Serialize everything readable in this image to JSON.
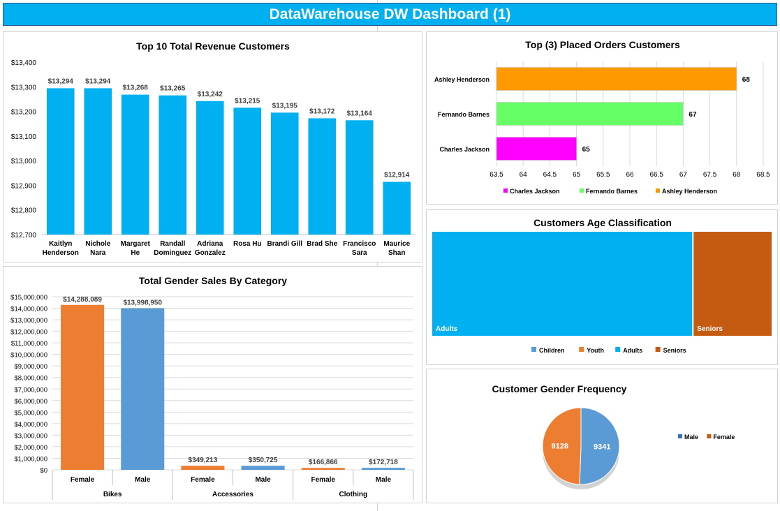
{
  "dashboard": {
    "title": "DataWarehouse DW Dashboard (1)"
  },
  "chart_data": [
    {
      "id": "revenue",
      "type": "bar",
      "title": "Top 10 Total Revenue Customers",
      "categories": [
        [
          "Kaitlyn",
          "Henderson"
        ],
        [
          "Nichole",
          "Nara"
        ],
        [
          "Margaret",
          "He"
        ],
        [
          "Randall",
          "Dominguez"
        ],
        [
          "Adriana",
          "Gonzalez"
        ],
        [
          "Rosa Hu"
        ],
        [
          "Brandi Gill"
        ],
        [
          "Brad She"
        ],
        [
          "Francisco",
          "Sara"
        ],
        [
          "Maurice",
          "Shan"
        ]
      ],
      "values": [
        13294,
        13294,
        13268,
        13265,
        13242,
        13215,
        13195,
        13172,
        13164,
        12914
      ],
      "data_labels": [
        "$13,294",
        "$13,294",
        "$13,268",
        "$13,265",
        "$13,242",
        "$13,215",
        "$13,195",
        "$13,172",
        "$13,164",
        "$12,914"
      ],
      "ylim": [
        12700,
        13400
      ],
      "yticks": [
        12700,
        12800,
        12900,
        13000,
        13100,
        13200,
        13300,
        13400
      ],
      "ytick_labels": [
        "$12,700",
        "$12,800",
        "$12,900",
        "$13,000",
        "$13,100",
        "$13,200",
        "$13,300",
        "$13,400"
      ],
      "color": "#00b0f0",
      "grid": false
    },
    {
      "id": "orders",
      "type": "bar",
      "orientation": "horizontal",
      "title": "Top (3) Placed Orders Customers",
      "categories": [
        "Ashley Henderson",
        "Fernando Barnes",
        "Charles Jackson"
      ],
      "values": [
        68,
        67,
        65
      ],
      "colors": [
        "#ff9900",
        "#66ff66",
        "#ff00ff"
      ],
      "xlim": [
        63.5,
        68.5
      ],
      "xticks": [
        63.5,
        64,
        64.5,
        65,
        65.5,
        66,
        66.5,
        67,
        67.5,
        68,
        68.5
      ],
      "legend": [
        {
          "name": "Charles Jackson",
          "color": "#ff00ff"
        },
        {
          "name": "Fernando Barnes",
          "color": "#66ff66"
        },
        {
          "name": "Ashley Henderson",
          "color": "#ff9900"
        }
      ],
      "legend_position": "bottom",
      "grid": true
    },
    {
      "id": "age",
      "type": "treemap",
      "title": "Customers Age Classification",
      "items": [
        {
          "name": "Adults",
          "share": 0.767,
          "color": "#00b0f0"
        },
        {
          "name": "Seniors",
          "share": 0.233,
          "color": "#c55a11"
        }
      ],
      "legend": [
        {
          "name": "Children",
          "color": "#5b9bd5"
        },
        {
          "name": "Youth",
          "color": "#ed7d31"
        },
        {
          "name": "Adults",
          "color": "#00b0f0"
        },
        {
          "name": "Seniors",
          "color": "#c55a11"
        }
      ],
      "legend_position": "bottom"
    },
    {
      "id": "gender_sales",
      "type": "bar",
      "title": "Total Gender Sales By Category",
      "groups": [
        "Bikes",
        "Accessories",
        "Clothing"
      ],
      "categories": [
        "Female",
        "Male",
        "Female",
        "Male",
        "Female",
        "Male"
      ],
      "values": [
        14288089,
        13998950,
        349213,
        350725,
        166866,
        172718
      ],
      "data_labels": [
        "$14,288,089",
        "$13,998,950",
        "$349,213",
        "$350,725",
        "$166,866",
        "$172,718"
      ],
      "colors": [
        "#ed7d31",
        "#5b9bd5",
        "#ed7d31",
        "#5b9bd5",
        "#ed7d31",
        "#5b9bd5"
      ],
      "ylim": [
        0,
        15000000
      ],
      "yticks": [
        0,
        1000000,
        2000000,
        3000000,
        4000000,
        5000000,
        6000000,
        7000000,
        8000000,
        9000000,
        10000000,
        11000000,
        12000000,
        13000000,
        14000000,
        15000000
      ],
      "ytick_labels": [
        "$0",
        "$1,000,000",
        "$2,000,000",
        "$3,000,000",
        "$4,000,000",
        "$5,000,000",
        "$6,000,000",
        "$7,000,000",
        "$8,000,000",
        "$9,000,000",
        "$10,000,000",
        "$11,000,000",
        "$12,000,000",
        "$13,000,000",
        "$14,000,000",
        "$15,000,000"
      ],
      "grid": true
    },
    {
      "id": "gender_freq",
      "type": "pie",
      "title": "Customer Gender Frequency",
      "slices": [
        {
          "name": "Male",
          "value": 9341,
          "color": "#5b9bd5"
        },
        {
          "name": "Female",
          "value": 9128,
          "color": "#ed7d31"
        }
      ],
      "legend": [
        {
          "name": "Male",
          "color": "#2e75b6"
        },
        {
          "name": "Female",
          "color": "#c55a11"
        }
      ],
      "legend_position": "right"
    }
  ]
}
